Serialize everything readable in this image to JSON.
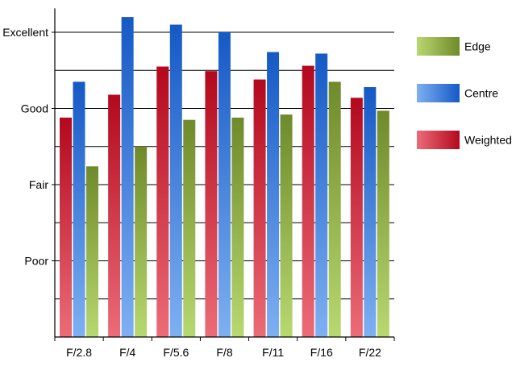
{
  "chart_data": {
    "type": "bar",
    "categories": [
      "F/2.8",
      "F/4",
      "F/5.6",
      "F/8",
      "F/11",
      "F/16",
      "F/22"
    ],
    "ytick_labels": [
      "Poor",
      "Fair",
      "Good",
      "Excellent"
    ],
    "ytick_values": [
      1,
      2,
      3,
      4
    ],
    "ylim": [
      0,
      4.25
    ],
    "grid": true,
    "legend_position": "right",
    "series": [
      {
        "name": "Weighted",
        "key": "weighted",
        "color": "#c8102e",
        "values": [
          2.88,
          3.18,
          3.55,
          3.49,
          3.38,
          3.56,
          3.14
        ]
      },
      {
        "name": "Centre",
        "key": "centre",
        "color": "#1e6fd9",
        "values": [
          3.35,
          4.2,
          4.1,
          4.0,
          3.74,
          3.72,
          3.28
        ]
      },
      {
        "name": "Edge",
        "key": "edge",
        "color": "#8aa83a",
        "values": [
          2.24,
          2.5,
          2.85,
          2.88,
          2.92,
          3.35,
          2.97
        ]
      }
    ],
    "legend_order": [
      "Edge",
      "Centre",
      "Weighted"
    ],
    "colors": {
      "axis": "#000000",
      "grid": "#000000"
    }
  }
}
